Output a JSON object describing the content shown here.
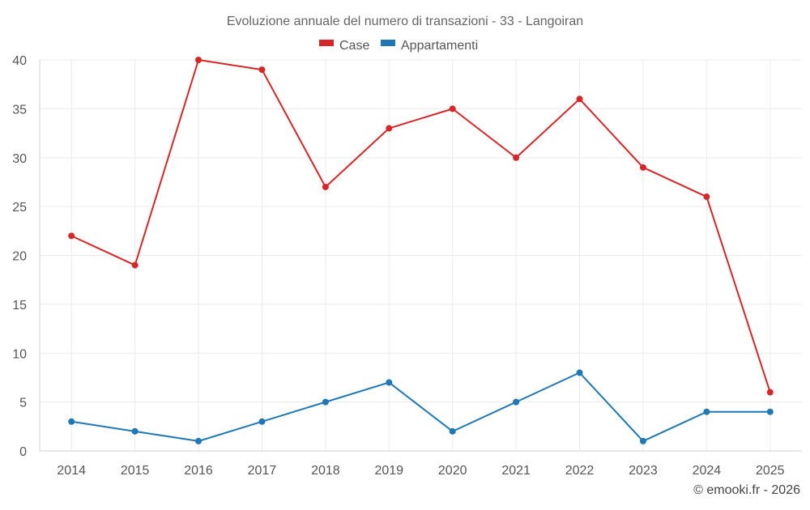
{
  "chart_data": {
    "type": "line",
    "title": "Evoluzione annuale del numero di transazioni - 33 - Langoiran",
    "xlabel": "",
    "ylabel": "",
    "categories": [
      "2014",
      "2015",
      "2016",
      "2017",
      "2018",
      "2019",
      "2020",
      "2021",
      "2022",
      "2023",
      "2024",
      "2025"
    ],
    "ylim": [
      0,
      40
    ],
    "yticks": [
      0,
      5,
      10,
      15,
      20,
      25,
      30,
      35,
      40
    ],
    "grid": true,
    "legend_position": "top-center",
    "series": [
      {
        "name": "Case",
        "color": "#d62728",
        "values": [
          22,
          19,
          40,
          39,
          27,
          33,
          35,
          30,
          36,
          29,
          26,
          6
        ]
      },
      {
        "name": "Appartamenti",
        "color": "#1f77b4",
        "values": [
          3,
          2,
          1,
          3,
          5,
          7,
          2,
          5,
          8,
          1,
          4,
          4
        ]
      }
    ]
  },
  "credit": "© emooki.fr - 2026"
}
